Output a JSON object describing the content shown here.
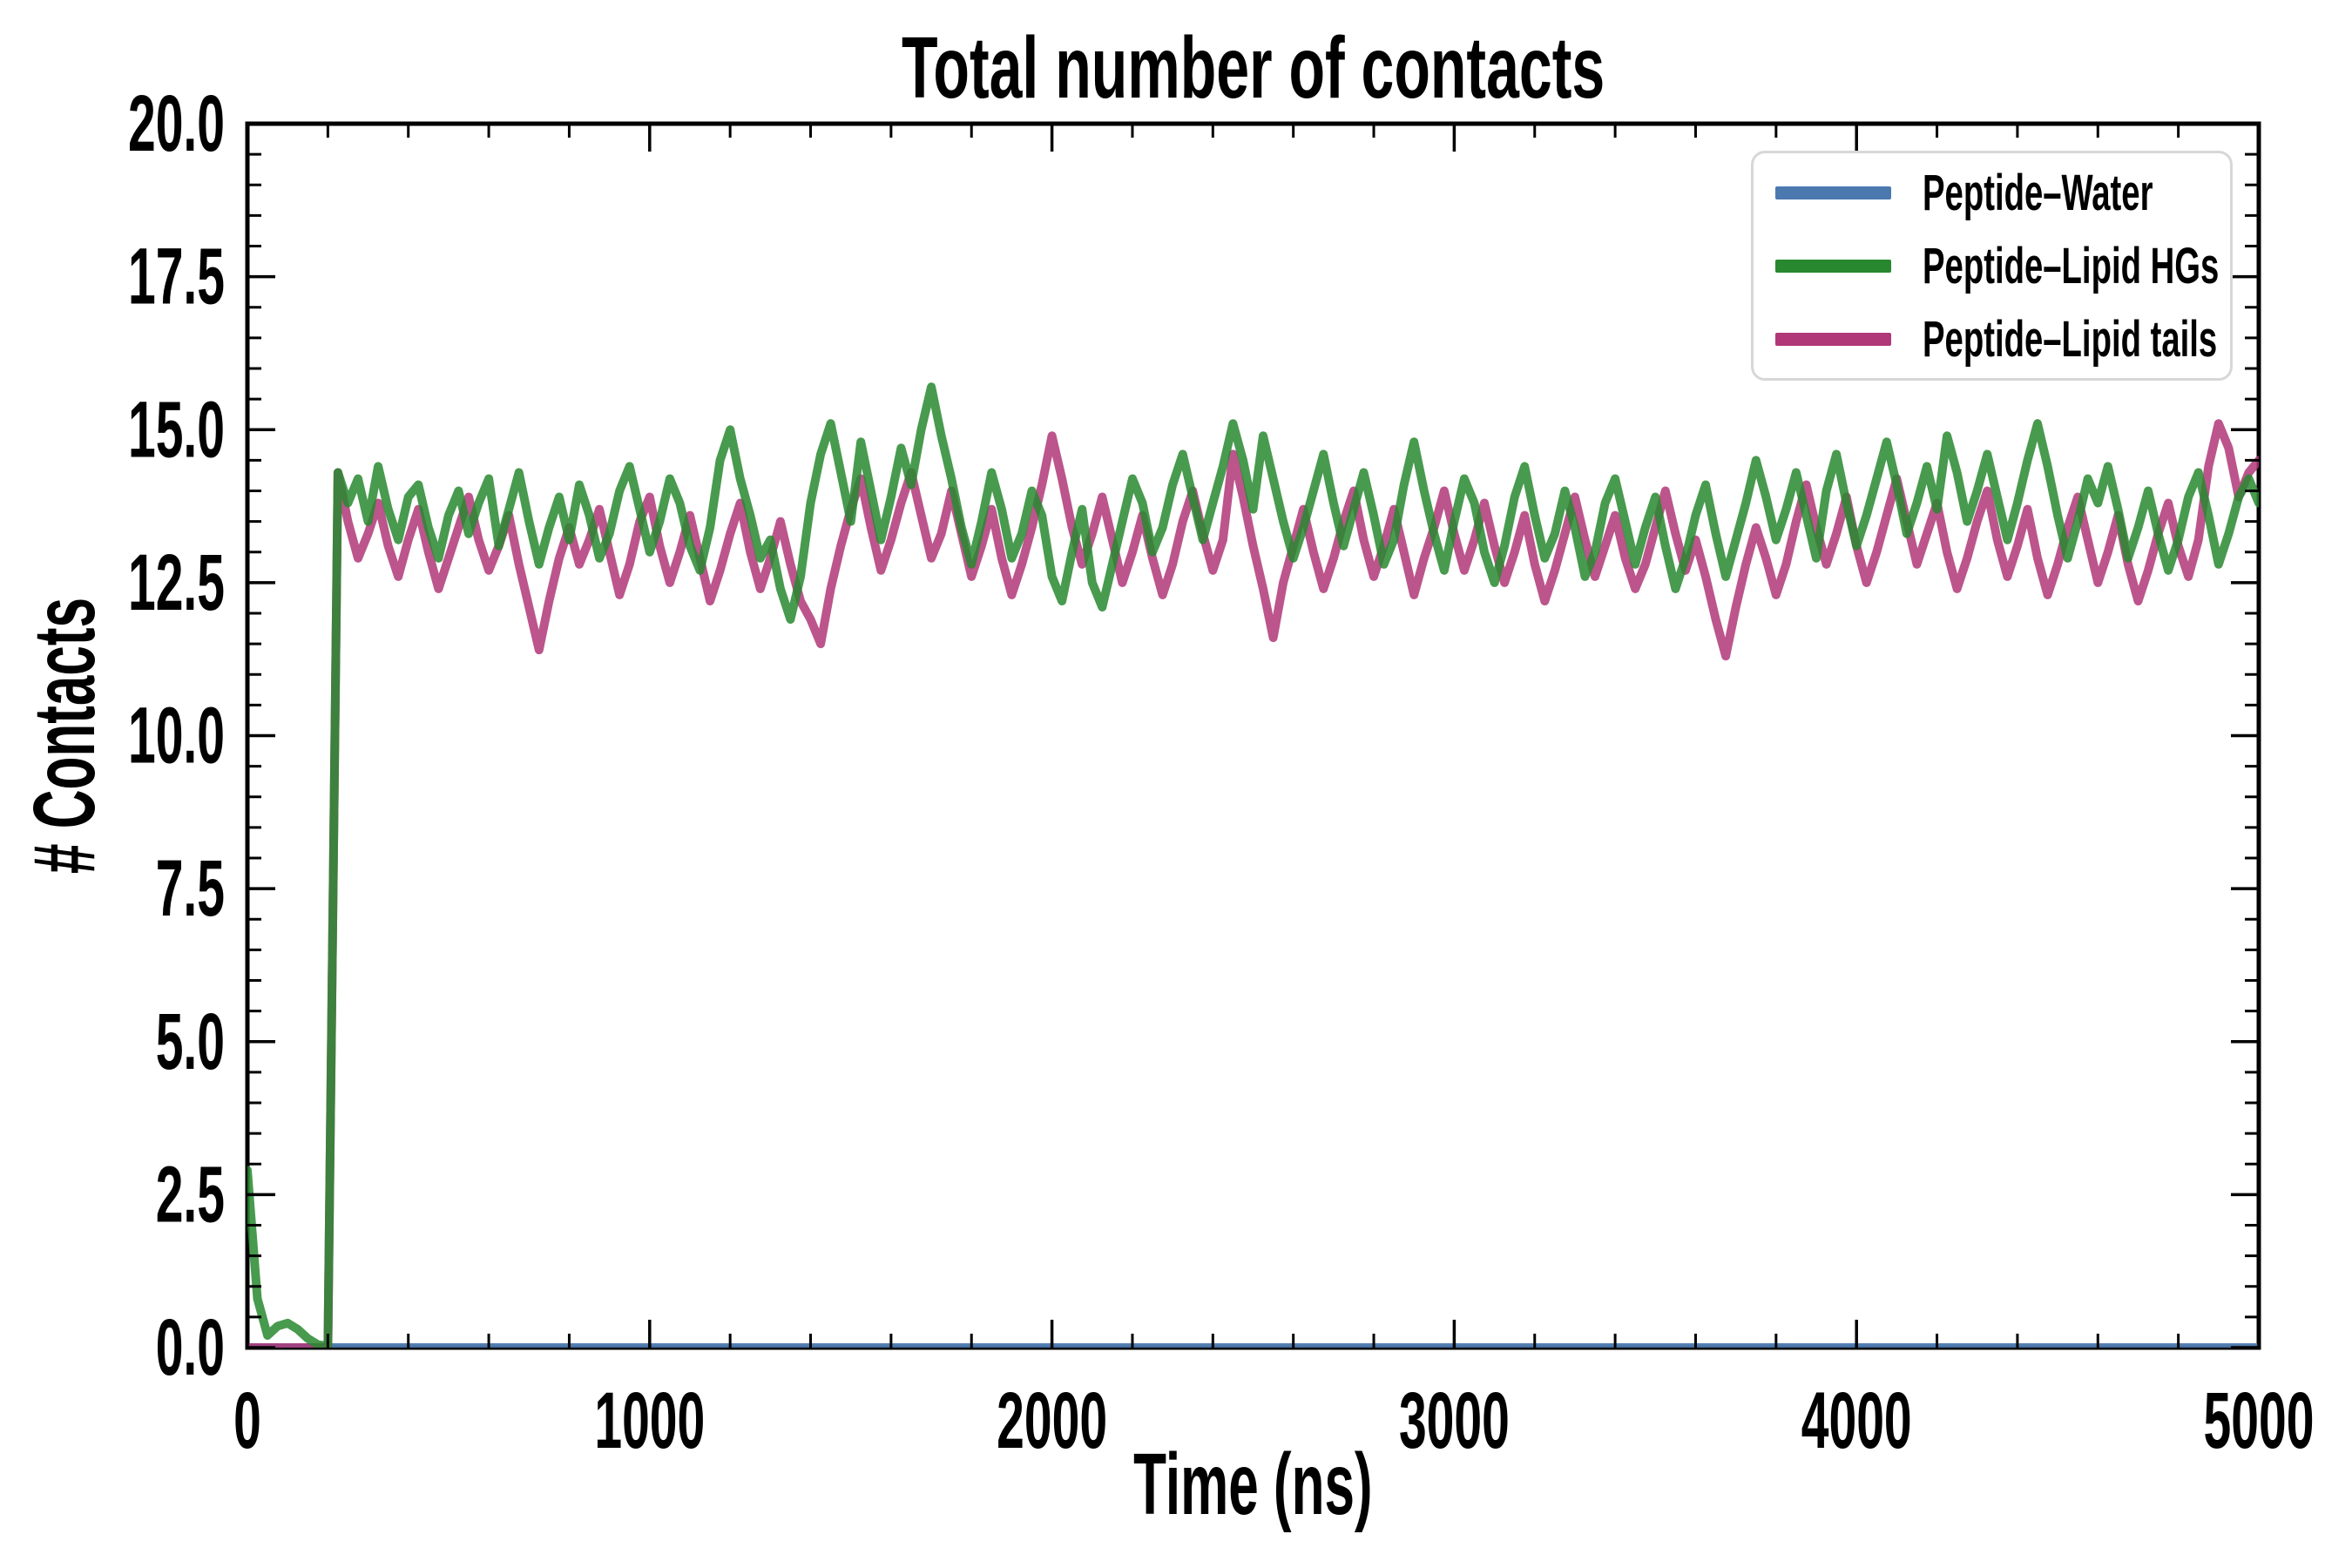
{
  "chart_data": {
    "type": "line",
    "title": "Total number of contacts",
    "xlabel": "Time (ns)",
    "ylabel": "# Contacts",
    "xlim": [
      0,
      5000
    ],
    "ylim": [
      0,
      20
    ],
    "grid": false,
    "background_color": "#ffffff",
    "spine_color": "#000000",
    "text_color": "#000000",
    "x_ticks": {
      "major_values": [
        0,
        1000,
        2000,
        3000,
        4000,
        5000
      ],
      "major_labels": [
        "0",
        "1000",
        "2000",
        "3000",
        "4000",
        "5000"
      ],
      "minor_step": 200
    },
    "y_ticks": {
      "major_values": [
        0,
        2.5,
        5,
        7.5,
        10,
        12.5,
        15,
        17.5,
        20
      ],
      "major_labels": [
        "0.0",
        "2.5",
        "5.0",
        "7.5",
        "10.0",
        "12.5",
        "15.0",
        "17.5",
        "20.0"
      ],
      "minor_step": 0.5
    },
    "legend": {
      "position": "upper right",
      "entries": [
        {
          "label": "Peptide–Water",
          "color": "#4b79af"
        },
        {
          "label": "Peptide–Lipid HGs",
          "color": "#28882f"
        },
        {
          "label": "Peptide–Lipid tails",
          "color": "#b03778"
        }
      ]
    },
    "series": [
      {
        "name": "Peptide–Water",
        "color": "#4b79af",
        "linewidth": 10,
        "opacity": 0.95,
        "zorder": 1,
        "x": [
          0,
          5000
        ],
        "y": [
          0,
          0
        ]
      },
      {
        "name": "Peptide–Lipid tails",
        "color": "#b03778",
        "linewidth": 10,
        "opacity": 0.85,
        "zorder": 2,
        "x_start": 0,
        "x_step": 25,
        "y": [
          0,
          0,
          0,
          0,
          0,
          0,
          0,
          0,
          0,
          14.3,
          13.5,
          12.9,
          13.3,
          13.8,
          13.1,
          12.6,
          13.2,
          13.7,
          13.0,
          12.4,
          12.9,
          13.4,
          13.9,
          13.2,
          12.7,
          13.1,
          13.6,
          12.8,
          12.1,
          11.4,
          12.2,
          12.9,
          13.4,
          12.8,
          13.2,
          13.7,
          13.0,
          12.3,
          12.8,
          13.5,
          13.9,
          13.1,
          12.5,
          13.0,
          13.6,
          12.9,
          12.2,
          12.7,
          13.3,
          13.8,
          13.0,
          12.4,
          12.9,
          13.5,
          12.8,
          12.2,
          11.9,
          11.5,
          12.4,
          13.1,
          13.7,
          14.2,
          13.4,
          12.7,
          13.2,
          13.8,
          14.3,
          13.6,
          12.9,
          13.3,
          14.0,
          13.3,
          12.6,
          13.1,
          13.7,
          12.9,
          12.3,
          12.8,
          13.4,
          14.1,
          14.9,
          14.2,
          13.4,
          12.8,
          13.3,
          13.9,
          13.2,
          12.5,
          13.0,
          13.6,
          12.9,
          12.3,
          12.8,
          13.5,
          14.0,
          13.3,
          12.7,
          13.2,
          14.6,
          13.9,
          13.1,
          12.4,
          11.6,
          12.5,
          13.1,
          13.7,
          13.0,
          12.4,
          12.9,
          13.5,
          14.0,
          13.2,
          12.6,
          13.1,
          13.7,
          13.0,
          12.3,
          12.9,
          13.4,
          14.0,
          13.3,
          12.7,
          13.2,
          13.8,
          13.1,
          12.5,
          13.0,
          13.6,
          12.8,
          12.2,
          12.7,
          13.3,
          13.9,
          13.2,
          12.6,
          13.1,
          13.6,
          12.9,
          12.4,
          12.8,
          13.4,
          14.0,
          13.3,
          12.7,
          13.2,
          12.6,
          11.9,
          11.3,
          12.1,
          12.8,
          13.4,
          12.9,
          12.3,
          12.8,
          13.5,
          14.1,
          13.4,
          12.8,
          13.3,
          13.9,
          13.1,
          12.5,
          13.0,
          13.6,
          14.2,
          13.5,
          12.8,
          13.3,
          13.8,
          13.0,
          12.4,
          12.9,
          13.5,
          14.0,
          13.2,
          12.6,
          13.1,
          13.7,
          12.9,
          12.3,
          12.8,
          13.4,
          13.9,
          13.2,
          12.5,
          13.0,
          13.6,
          12.8,
          12.2,
          12.7,
          13.3,
          13.8,
          13.1,
          12.6,
          13.2,
          14.4,
          15.1,
          14.7,
          13.9,
          14.3,
          14.5
        ]
      },
      {
        "name": "Peptide–Lipid HGs",
        "color": "#28882f",
        "linewidth": 10,
        "opacity": 0.85,
        "zorder": 3,
        "x_start": 0,
        "x_step": 25,
        "y": [
          2.9,
          0.8,
          0.2,
          0.35,
          0.4,
          0.3,
          0.15,
          0.05,
          0.02,
          14.3,
          13.8,
          14.2,
          13.5,
          14.4,
          13.7,
          13.2,
          13.9,
          14.1,
          13.4,
          12.9,
          13.6,
          14.0,
          13.3,
          13.8,
          14.2,
          13.1,
          13.7,
          14.3,
          13.5,
          12.8,
          13.4,
          13.9,
          13.2,
          14.1,
          13.6,
          12.9,
          13.3,
          14.0,
          14.4,
          13.7,
          13.0,
          13.5,
          14.2,
          13.8,
          13.1,
          12.7,
          13.4,
          14.5,
          15.0,
          14.2,
          13.6,
          12.9,
          13.2,
          12.4,
          11.9,
          12.6,
          13.8,
          14.6,
          15.1,
          14.3,
          13.5,
          14.8,
          14.0,
          13.2,
          13.9,
          14.7,
          14.1,
          15.0,
          15.7,
          14.9,
          14.2,
          13.4,
          12.8,
          13.5,
          14.3,
          13.7,
          12.9,
          13.3,
          14.0,
          13.6,
          12.6,
          12.2,
          13.0,
          13.7,
          12.5,
          12.1,
          12.8,
          13.5,
          14.2,
          13.8,
          13.0,
          13.4,
          14.1,
          14.6,
          13.9,
          13.2,
          13.8,
          14.4,
          15.1,
          14.5,
          13.7,
          14.9,
          14.2,
          13.5,
          12.9,
          13.4,
          14.0,
          14.6,
          13.8,
          13.1,
          13.7,
          14.3,
          13.6,
          12.8,
          13.2,
          14.1,
          14.8,
          14.0,
          13.3,
          12.7,
          13.5,
          14.2,
          13.8,
          13.0,
          12.5,
          13.1,
          13.9,
          14.4,
          13.6,
          12.9,
          13.3,
          14.0,
          13.4,
          12.6,
          13.0,
          13.8,
          14.2,
          13.5,
          12.8,
          13.4,
          13.9,
          13.1,
          12.4,
          12.9,
          13.6,
          14.1,
          13.3,
          12.6,
          13.2,
          13.8,
          14.5,
          13.9,
          13.2,
          13.7,
          14.3,
          13.6,
          12.9,
          14.0,
          14.6,
          13.8,
          13.1,
          13.6,
          14.2,
          14.8,
          14.1,
          13.3,
          13.8,
          14.4,
          13.7,
          14.9,
          14.3,
          13.5,
          14.0,
          14.6,
          13.9,
          13.2,
          13.8,
          14.5,
          15.1,
          14.4,
          13.6,
          12.9,
          13.5,
          14.2,
          13.8,
          14.4,
          13.7,
          12.9,
          13.4,
          14.0,
          13.3,
          12.7,
          13.2,
          13.9,
          14.3,
          13.6,
          12.8,
          13.3,
          13.9,
          14.2,
          13.8
        ]
      }
    ]
  }
}
